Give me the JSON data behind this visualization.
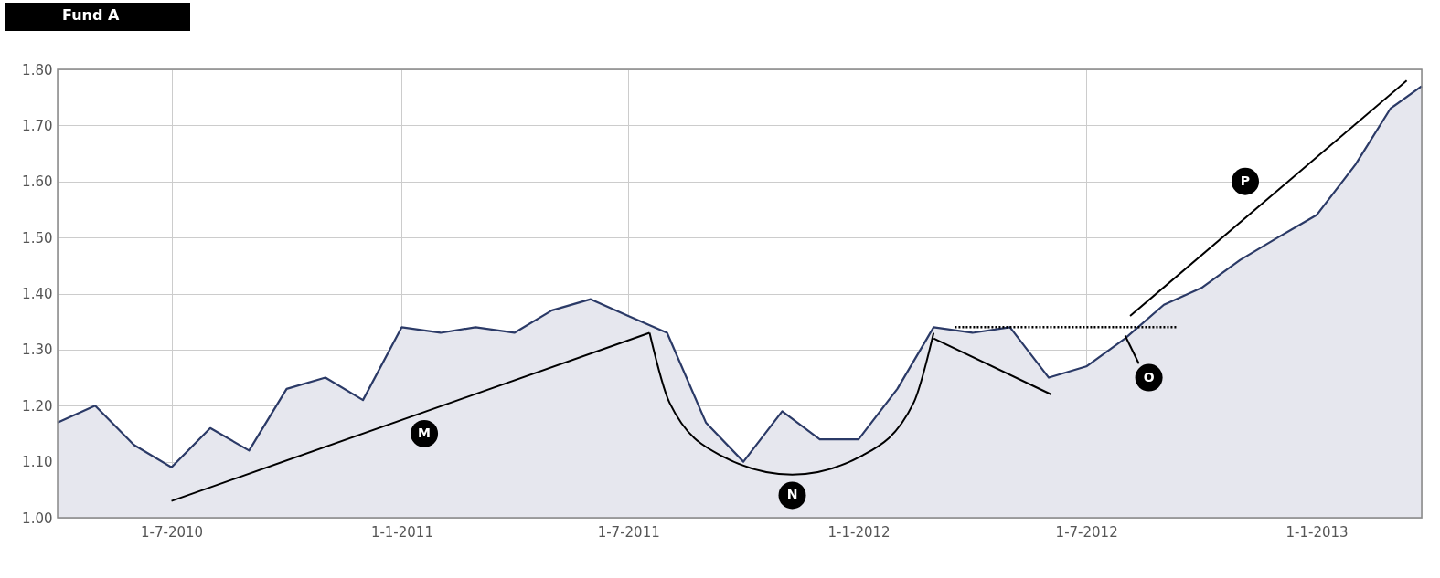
{
  "chart_data": {
    "type": "area",
    "title": "Fund A",
    "xlim": [
      "2010-04-01",
      "2013-03-26"
    ],
    "xticks": [
      {
        "value": "2010-07-01",
        "label": "1-7-2010"
      },
      {
        "value": "2011-01-01",
        "label": "1-1-2011"
      },
      {
        "value": "2011-07-01",
        "label": "1-7-2011"
      },
      {
        "value": "2012-01-01",
        "label": "1-1-2012"
      },
      {
        "value": "2012-07-01",
        "label": "1-7-2012"
      },
      {
        "value": "2013-01-01",
        "label": "1-1-2013"
      }
    ],
    "ylim": [
      1.0,
      1.8
    ],
    "yticks": [
      {
        "value": 1.0,
        "label": "1.00"
      },
      {
        "value": 1.1,
        "label": "1.10"
      },
      {
        "value": 1.2,
        "label": "1.20"
      },
      {
        "value": 1.3,
        "label": "1.30"
      },
      {
        "value": 1.4,
        "label": "1.40"
      },
      {
        "value": 1.5,
        "label": "1.50"
      },
      {
        "value": 1.6,
        "label": "1.60"
      },
      {
        "value": 1.7,
        "label": "1.70"
      },
      {
        "value": 1.8,
        "label": "1.80"
      }
    ],
    "grid": true,
    "series": [
      {
        "color": "#2b3a67",
        "x": [
          "2010-04-01",
          "2010-05-01",
          "2010-06-01",
          "2010-07-01",
          "2010-08-01",
          "2010-09-01",
          "2010-10-01",
          "2010-11-01",
          "2010-12-01",
          "2011-01-01",
          "2011-02-01",
          "2011-03-01",
          "2011-04-01",
          "2011-05-01",
          "2011-06-01",
          "2011-07-01",
          "2011-08-01",
          "2011-09-01",
          "2011-10-01",
          "2011-11-01",
          "2011-12-01",
          "2012-01-01",
          "2012-02-01",
          "2012-03-01",
          "2012-04-01",
          "2012-05-01",
          "2012-06-01",
          "2012-07-01",
          "2012-08-01",
          "2012-09-01",
          "2012-10-01",
          "2012-11-01",
          "2012-12-01",
          "2013-01-01",
          "2013-02-01",
          "2013-03-01",
          "2013-03-26"
        ],
        "values": [
          1.17,
          1.2,
          1.13,
          1.09,
          1.16,
          1.12,
          1.23,
          1.25,
          1.21,
          1.34,
          1.33,
          1.34,
          1.33,
          1.37,
          1.39,
          1.36,
          1.33,
          1.17,
          1.1,
          1.19,
          1.14,
          1.14,
          1.23,
          1.34,
          1.33,
          1.34,
          1.25,
          1.27,
          1.32,
          1.38,
          1.41,
          1.46,
          1.5,
          1.54,
          1.63,
          1.73,
          1.77
        ]
      },
      {
        "type": "line",
        "color": "#000000",
        "x": [
          "2010-07-01",
          "2011-07-18"
        ],
        "values": [
          1.03,
          1.33
        ]
      },
      {
        "type": "line",
        "color": "#000000",
        "x": [
          "2011-07-18",
          "2011-08-03",
          "2011-09-13",
          "2011-11-09",
          "2012-01-04",
          "2012-02-14",
          "2012-03-01"
        ],
        "values": [
          1.33,
          1.205,
          1.111,
          1.077,
          1.111,
          1.205,
          1.33
        ]
      },
      {
        "type": "line",
        "color": "#000000",
        "x": [
          "2012-03-01",
          "2012-06-03"
        ],
        "values": [
          1.32,
          1.22
        ]
      },
      {
        "type": "line",
        "color": "#000000",
        "line_style": "dotted",
        "x": [
          "2012-03-18",
          "2012-09-12"
        ],
        "values": [
          1.34,
          1.34
        ]
      },
      {
        "type": "line",
        "color": "#000000",
        "x": [
          "2012-08-05",
          "2013-03-14"
        ],
        "values": [
          1.36,
          1.78
        ]
      },
      {
        "type": "line",
        "color": "#000000",
        "x": [
          "2012-08-12",
          "2012-08-01"
        ],
        "values": [
          1.275,
          1.325
        ]
      }
    ],
    "annotations": [
      {
        "text": "M",
        "x": "2011-01-19",
        "y": 1.15
      },
      {
        "text": "N",
        "x": "2011-11-09",
        "y": 1.04
      },
      {
        "text": "O",
        "x": "2012-08-20",
        "y": 1.25
      },
      {
        "text": "P",
        "x": "2012-11-05",
        "y": 1.6
      }
    ]
  }
}
